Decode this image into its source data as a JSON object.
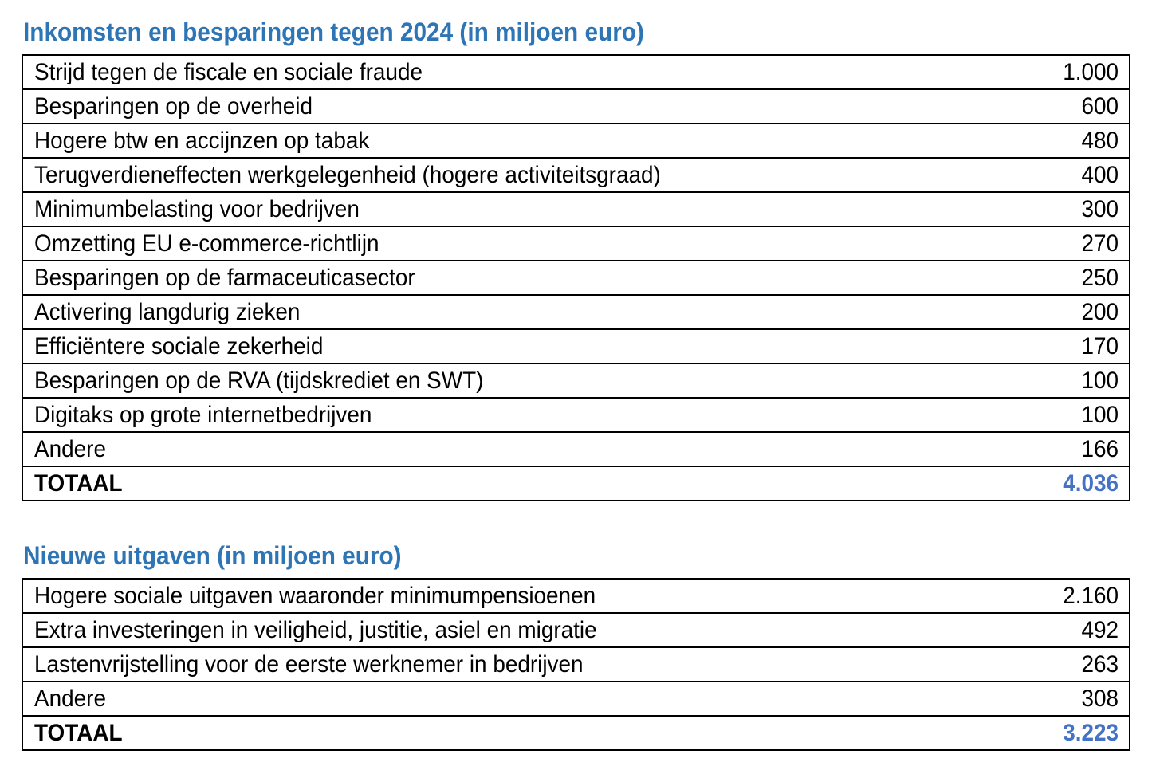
{
  "colors": {
    "title": "#2E75B6",
    "total_value": "#4472C4",
    "text": "#000000",
    "border": "#000000"
  },
  "tables": [
    {
      "title": "Inkomsten en besparingen tegen 2024 (in miljoen euro)",
      "rows": [
        {
          "label": "Strijd tegen de fiscale en sociale fraude",
          "value": "1.000"
        },
        {
          "label": "Besparingen op de overheid",
          "value": "600"
        },
        {
          "label": "Hogere btw en accijnzen op tabak",
          "value": "480"
        },
        {
          "label": "Terugverdieneffecten werkgelegenheid (hogere activiteitsgraad)",
          "value": "400"
        },
        {
          "label": "Minimumbelasting voor bedrijven",
          "value": "300"
        },
        {
          "label": "Omzetting EU e-commerce-richtlijn",
          "value": "270"
        },
        {
          "label": "Besparingen op de farmaceuticasector",
          "value": "250"
        },
        {
          "label": "Activering langdurig zieken",
          "value": "200"
        },
        {
          "label": "Efficiëntere sociale zekerheid",
          "value": "170"
        },
        {
          "label": "Besparingen op de RVA (tijdskrediet en SWT)",
          "value": "100"
        },
        {
          "label": "Digitaks op grote internetbedrijven",
          "value": "100"
        },
        {
          "label": "Andere",
          "value": "166"
        }
      ],
      "total": {
        "label": "TOTAAL",
        "value": "4.036"
      }
    },
    {
      "title": "Nieuwe uitgaven (in miljoen euro)",
      "rows": [
        {
          "label": "Hogere sociale uitgaven waaronder minimumpensioenen",
          "value": "2.160"
        },
        {
          "label": "Extra investeringen in veiligheid, justitie, asiel en migratie",
          "value": "492"
        },
        {
          "label": "Lastenvrijstelling voor de eerste werknemer in bedrijven",
          "value": "263"
        },
        {
          "label": "Andere",
          "value": "308"
        }
      ],
      "total": {
        "label": "TOTAAL",
        "value": "3.223"
      }
    }
  ]
}
